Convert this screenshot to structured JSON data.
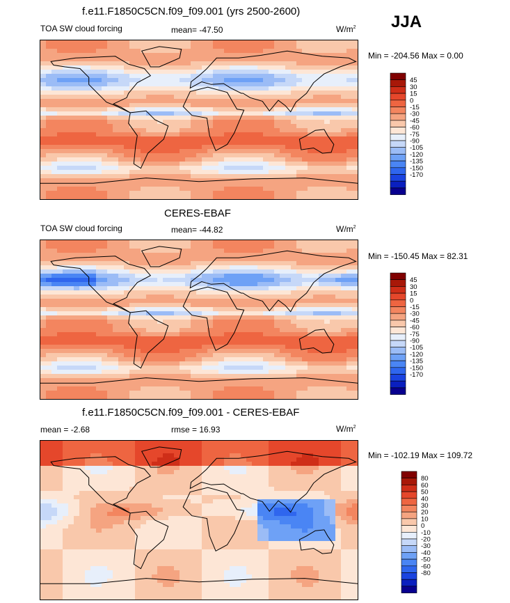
{
  "season": "JJA",
  "colors": {
    "scale_a": [
      "#08008f",
      "#0a1fbf",
      "#1a43e0",
      "#2f66ee",
      "#4a85f4",
      "#6ea1f6",
      "#9bbcf6",
      "#c6d8f8",
      "#e7effb",
      "#fde6d6",
      "#f9c8ab",
      "#f5a481",
      "#f3855f",
      "#ee6541",
      "#e5472b",
      "#cf2e18",
      "#a81808",
      "#800000"
    ],
    "scale_b": [
      "#08008f",
      "#0a1fbf",
      "#1a43e0",
      "#2f66ee",
      "#4a85f4",
      "#6ea1f6",
      "#9bbcf6",
      "#c6d8f8",
      "#e7effb",
      "#fde6d6",
      "#f9c8ab",
      "#f5a481",
      "#f3855f",
      "#ee6541",
      "#e5472b",
      "#cf2e18",
      "#a81808",
      "#800000"
    ]
  },
  "chart_data": [
    {
      "type": "heatmap",
      "title": "f.e11.F1850C5CN.f09_f09.001 (yrs 2500-2600)",
      "left_label": "TOA SW cloud forcing",
      "stat_label": "mean= -47.50",
      "units": "W/m",
      "units_exp": "2",
      "range_label": "Min = -204.56 Max =   0.00",
      "mean": -47.5,
      "min": -204.56,
      "max": 0.0,
      "levels": [
        "45",
        "30",
        "15",
        "0",
        "-15",
        "-30",
        "-45",
        "-60",
        "-75",
        "-90",
        "-105",
        "-120",
        "-135",
        "-150",
        "-170"
      ]
    },
    {
      "type": "heatmap",
      "title": "CERES-EBAF",
      "left_label": "TOA SW cloud forcing",
      "stat_label": "mean= -44.82",
      "units": "W/m",
      "units_exp": "2",
      "range_label": "Min = -150.45 Max =  82.31",
      "mean": -44.82,
      "min": -150.45,
      "max": 82.31,
      "levels": [
        "45",
        "30",
        "15",
        "0",
        "-15",
        "-30",
        "-45",
        "-60",
        "-75",
        "-90",
        "-105",
        "-120",
        "-135",
        "-150",
        "-170"
      ]
    },
    {
      "type": "heatmap",
      "title": "f.e11.F1850C5CN.f09_f09.001 - CERES-EBAF",
      "left_label": "mean =   -2.68",
      "stat_label": "rmse =  16.93",
      "units": "W/m",
      "units_exp": "2",
      "range_label": "Min = -102.19 Max = 109.72",
      "mean": -2.68,
      "rmse": 16.93,
      "min": -102.19,
      "max": 109.72,
      "levels": [
        "80",
        "60",
        "50",
        "40",
        "30",
        "20",
        "10",
        "0",
        "-10",
        "-20",
        "-30",
        "-40",
        "-50",
        "-60",
        "-80"
      ]
    }
  ]
}
